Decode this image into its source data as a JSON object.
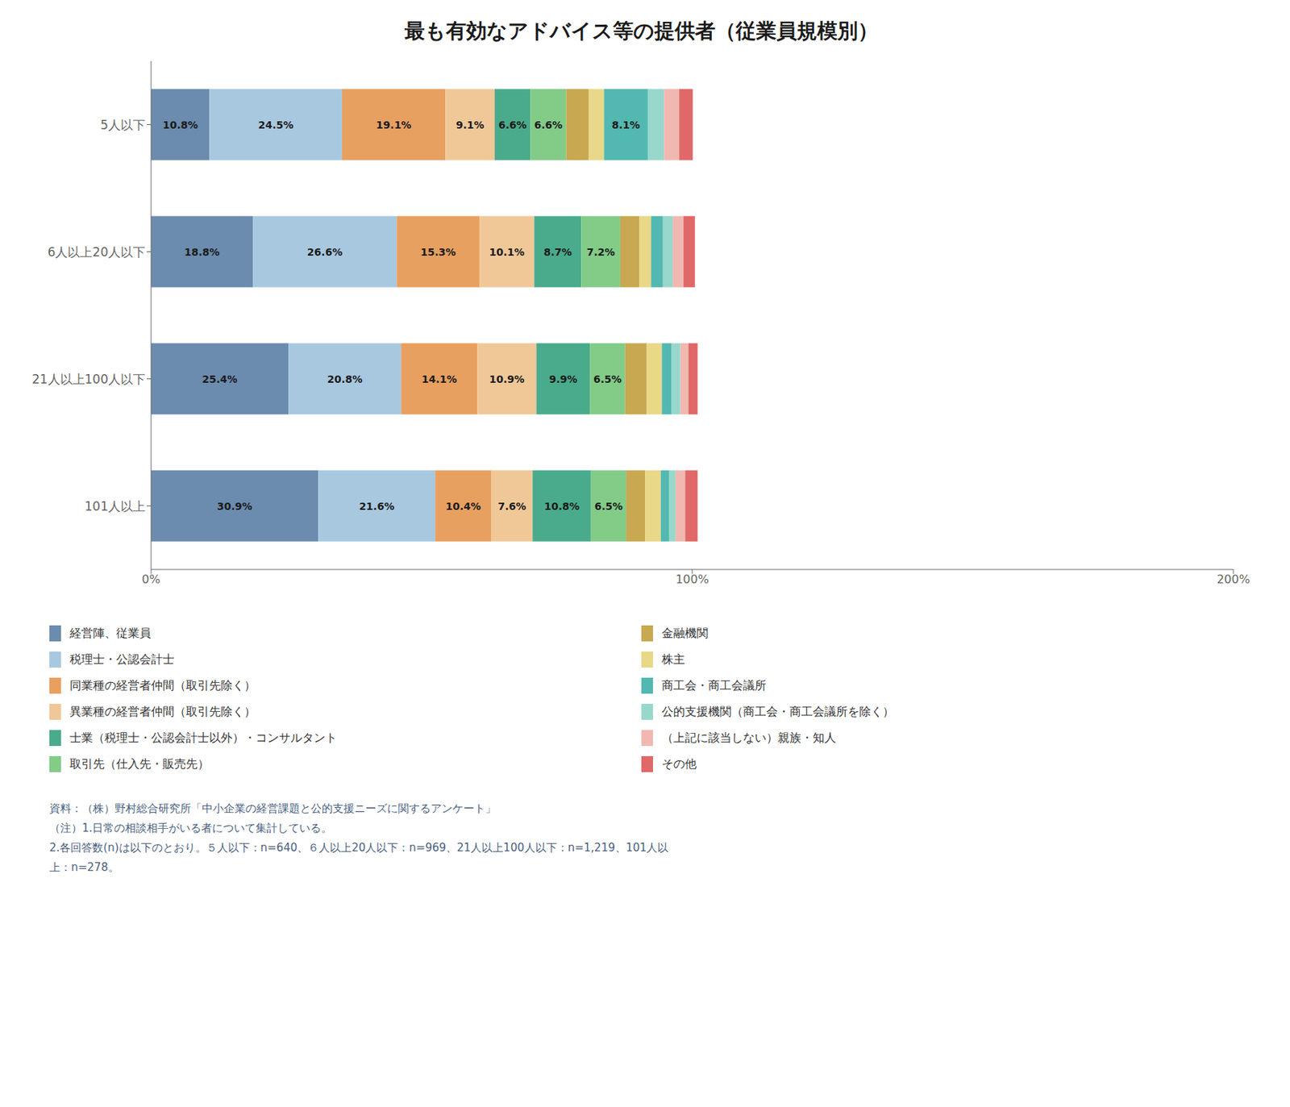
{
  "chart_data": {
    "type": "bar",
    "orientation": "horizontal",
    "stacked": true,
    "data_labels": true,
    "grid": false,
    "title": "最も有効なアドバイス等の提供者（従業員規模別）",
    "categories": [
      "101人以上",
      "21人以上100人以下",
      "6人以上20人以下",
      "5人以下"
    ],
    "xlim": [
      0,
      200
    ],
    "xticks": [
      {
        "value": 0,
        "label": "0%"
      },
      {
        "value": 100,
        "label": "100%"
      },
      {
        "value": 200,
        "label": "200%"
      }
    ],
    "series": [
      {
        "name": "経営陣、従業員",
        "color": "#6b8cae",
        "values": [
          30.9,
          25.4,
          18.8,
          10.8
        ],
        "value_labels": [
          "30.9%",
          "25.4%",
          "18.8%",
          "10.8%"
        ]
      },
      {
        "name": "税理士・公認会計士",
        "color": "#a8c8e0",
        "values": [
          21.6,
          20.8,
          26.6,
          24.5
        ],
        "value_labels": [
          "21.6%",
          "20.8%",
          "26.6%",
          "24.5%"
        ]
      },
      {
        "name": "同業種の経営者仲間（取引先除く）",
        "color": "#e8a060",
        "values": [
          10.4,
          14.1,
          15.3,
          19.1
        ],
        "value_labels": [
          "10.4%",
          "14.1%",
          "15.3%",
          "19.1%"
        ]
      },
      {
        "name": "異業種の経営者仲間（取引先除く）",
        "color": "#f0c898",
        "values": [
          7.6,
          10.9,
          10.1,
          9.1
        ],
        "value_labels": [
          "7.6%",
          "10.9%",
          "10.1%",
          "9.1%"
        ]
      },
      {
        "name": "士業（税理士・公認会計士以外）・コンサルタント",
        "color": "#4aab8c",
        "values": [
          10.8,
          9.9,
          8.7,
          6.6
        ],
        "value_labels": [
          "10.8%",
          "9.9%",
          "8.7%",
          "6.6%"
        ]
      },
      {
        "name": "取引先（仕入先・販売先）",
        "color": "#82cc88",
        "values": [
          6.5,
          6.5,
          7.2,
          6.6
        ],
        "value_labels": [
          "6.5%",
          "6.5%",
          "7.2%",
          "6.6%"
        ]
      },
      {
        "name": "金融機関",
        "color": "#c8a850",
        "values": [
          3.5,
          4.0,
          3.5,
          4.2
        ],
        "value_labels": [
          null,
          null,
          null,
          null
        ]
      },
      {
        "name": "株主",
        "color": "#e8d888",
        "values": [
          2.9,
          2.8,
          2.2,
          2.8
        ],
        "value_labels": [
          null,
          null,
          null,
          null
        ]
      },
      {
        "name": "商工会・商工会議所",
        "color": "#52b8b0",
        "values": [
          1.5,
          1.8,
          2.2,
          8.1
        ],
        "value_labels": [
          null,
          null,
          null,
          "8.1%"
        ]
      },
      {
        "name": "公的支援機関（商工会・商工会議所を除く）",
        "color": "#98d8cc",
        "values": [
          1.2,
          1.6,
          1.8,
          3.0
        ],
        "value_labels": [
          null,
          null,
          null,
          null
        ]
      },
      {
        "name": "（上記に該当しない）親族・知人",
        "color": "#f0b8b0",
        "values": [
          1.8,
          1.5,
          2.0,
          2.8
        ],
        "value_labels": [
          null,
          null,
          null,
          null
        ]
      },
      {
        "name": "その他",
        "color": "#e06868",
        "values": [
          2.3,
          1.7,
          2.1,
          2.5
        ],
        "value_labels": [
          null,
          null,
          null,
          null
        ]
      }
    ],
    "annotations": [
      "資料：（株）野村総合研究所「中小企業の経営課題と公的支援ニーズに関するアンケート」",
      "（注）1.日常の相談相手がいる者について集計している。",
      "2.各回答数(n)は以下のとおり。５人以下：n=640、６人以上20人以下：n=969、21人以上100人以下：n=1,219、101人以",
      "上：n=278。"
    ]
  }
}
